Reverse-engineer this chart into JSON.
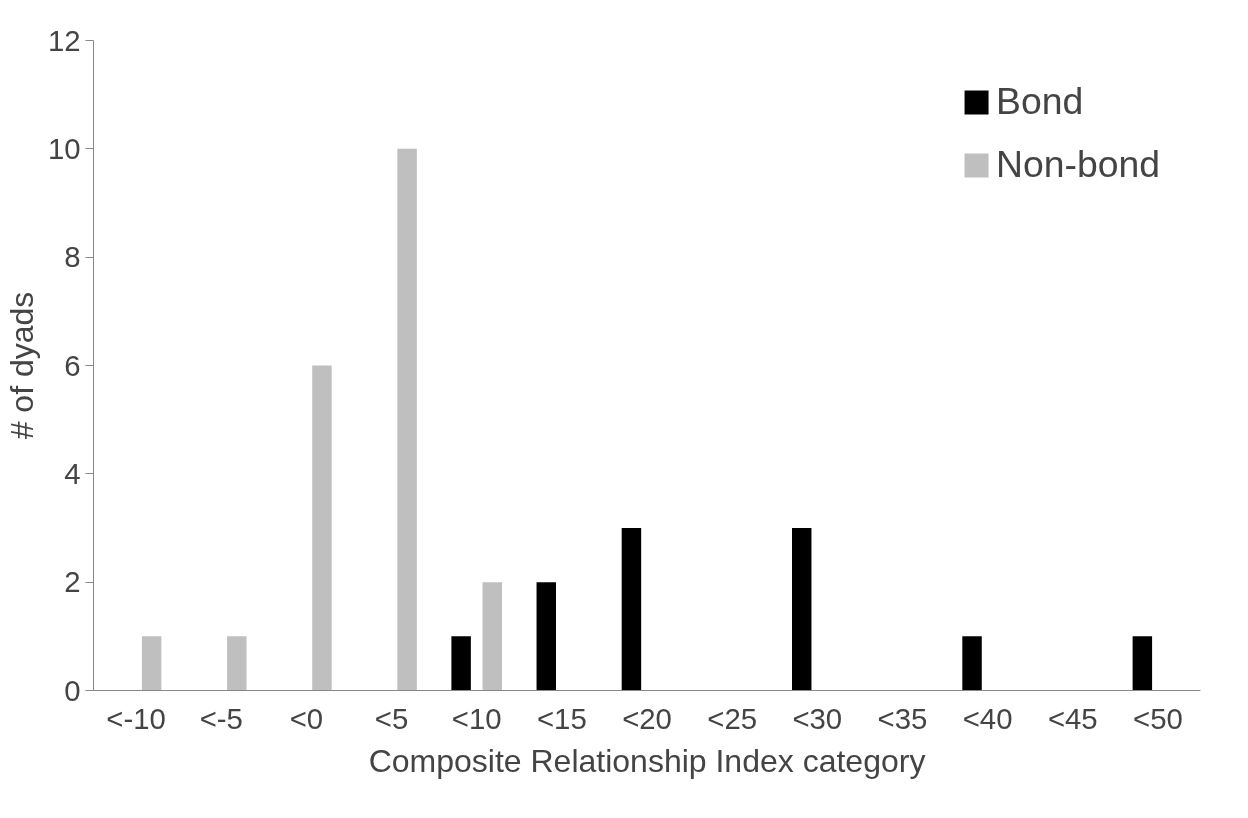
{
  "chart_data": {
    "type": "bar",
    "xlabel": "Composite Relationship Index category",
    "ylabel": "# of dyads",
    "categories": [
      "<-10",
      "<-5",
      "<0",
      "<5",
      "<10",
      "<15",
      "<20",
      "<25",
      "<30",
      "<35",
      "<40",
      "<45",
      "<50"
    ],
    "series": [
      {
        "name": "Bond",
        "color": "#000000",
        "values": [
          0,
          0,
          0,
          0,
          1,
          2,
          3,
          0,
          3,
          0,
          1,
          0,
          1
        ]
      },
      {
        "name": "Non-bond",
        "color": "#bfbfbf",
        "values": [
          1,
          1,
          6,
          10,
          2,
          0,
          0,
          0,
          0,
          0,
          0,
          0,
          0
        ]
      }
    ],
    "ylim": [
      0,
      12
    ],
    "yticks": [
      0,
      2,
      4,
      6,
      8,
      10,
      12
    ],
    "grid": false,
    "legend": "top right"
  }
}
